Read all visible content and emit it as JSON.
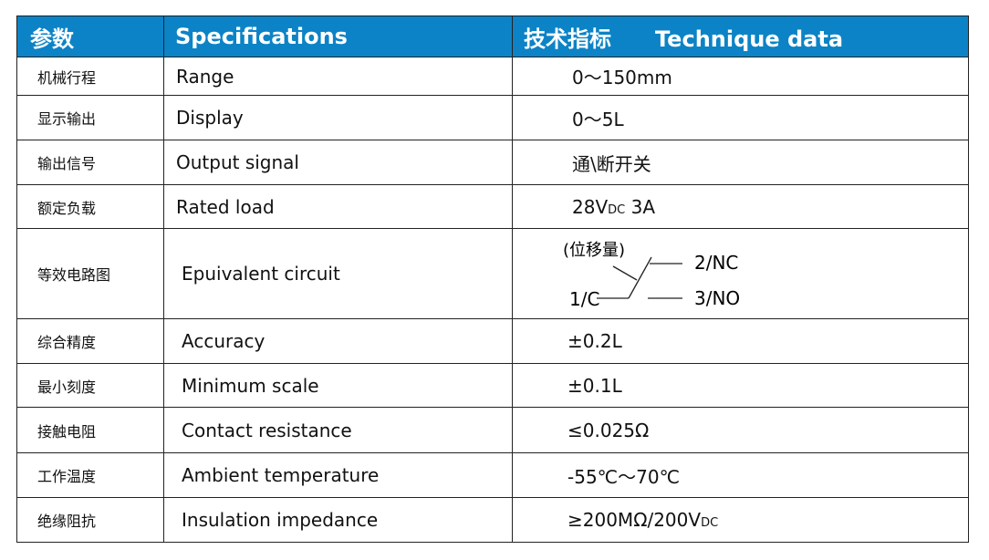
{
  "header": {
    "col1": "参数",
    "col2": "Specifications",
    "col3_cn": "技术指标",
    "col3_en": "Technique data"
  },
  "rows": [
    {
      "cn": "机械行程",
      "en": "Range",
      "value": "0～150mm"
    },
    {
      "cn": "显示输出",
      "en": "Display",
      "value": "0～5L"
    },
    {
      "cn": "输出信号",
      "en": "Output signal",
      "value": "通\\断开关"
    },
    {
      "cn": "额定负载",
      "en": "Rated load",
      "value_a": "28V",
      "value_sub": "DC",
      "value_b": " 3A"
    },
    {
      "cn": "等效电路图",
      "en": "Epuivalent circuit",
      "circuit": {
        "label": "(位移量)",
        "common": "1/C",
        "nc": "2/NC",
        "no": "3/NO"
      }
    },
    {
      "cn": "综合精度",
      "en": "Accuracy",
      "value": "±0.2L"
    },
    {
      "cn": "最小刻度",
      "en": "Minimum scale",
      "value": "±0.1L"
    },
    {
      "cn": "接触电阻",
      "en": "Contact resistance",
      "value": "≤0.025Ω"
    },
    {
      "cn": "工作温度",
      "en": "Ambient temperature",
      "value": "-55℃～70℃"
    },
    {
      "cn": "绝缘阻抗",
      "en": "Insulation impedance",
      "value_a": "≥200MΩ/200V",
      "value_sub": "DC"
    }
  ],
  "colors": {
    "header_bg": "#0c83c6",
    "header_text": "#ffffff",
    "border": "#222222"
  }
}
